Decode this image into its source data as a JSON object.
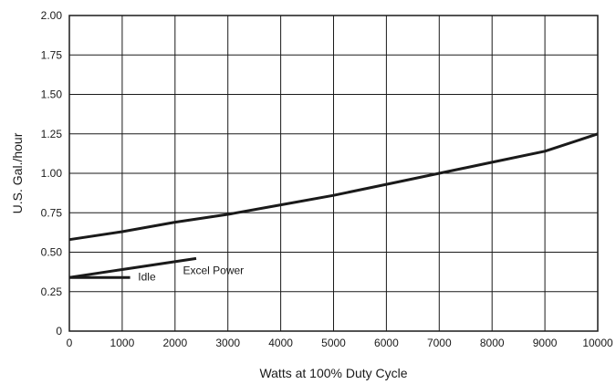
{
  "chart_data": {
    "type": "line",
    "title": "",
    "xlabel": "Watts at 100% Duty Cycle",
    "ylabel": "U.S. Gal./hour",
    "xlim": [
      0,
      10000
    ],
    "ylim": [
      0,
      2.0
    ],
    "x_ticks": [
      "0",
      "1000",
      "2000",
      "3000",
      "4000",
      "5000",
      "6000",
      "7000",
      "8000",
      "9000",
      "10000"
    ],
    "y_ticks": [
      "0",
      "0.25",
      "0.50",
      "0.75",
      "1.00",
      "1.25",
      "1.50",
      "1.75",
      "2.00"
    ],
    "grid": true,
    "series": [
      {
        "x": [
          0,
          1000,
          2000,
          3000,
          4000,
          5000,
          6000,
          7000,
          8000,
          9000,
          10000
        ],
        "y": [
          0.58,
          0.63,
          0.69,
          0.74,
          0.8,
          0.86,
          0.93,
          1.0,
          1.07,
          1.14,
          1.25
        ],
        "color": "#1a1a1a"
      },
      {
        "x": [
          0,
          1000,
          2400
        ],
        "y": [
          0.34,
          0.39,
          0.46
        ],
        "color": "#1a1a1a"
      },
      {
        "x": [
          0,
          1150
        ],
        "y": [
          0.34,
          0.34
        ],
        "color": "#1a1a1a"
      }
    ],
    "annotations": [
      {
        "text": "Excel Power",
        "x": 2150,
        "y": 0.36
      },
      {
        "text": "Idle",
        "x": 1300,
        "y": 0.32
      }
    ]
  }
}
